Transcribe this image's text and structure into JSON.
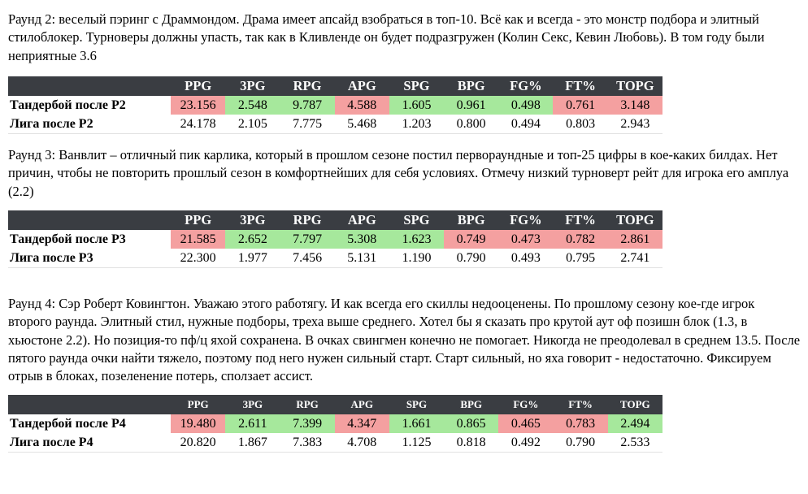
{
  "columns": [
    "PPG",
    "3PG",
    "RPG",
    "APG",
    "SPG",
    "BPG",
    "FG%",
    "FT%",
    "TOPG"
  ],
  "colors": {
    "header_bg": "#3a3d42",
    "bad": "#f4a0a0",
    "good": "#a6e89c"
  },
  "sections": [
    {
      "text": "Раунд 2: веселый пэринг с Драммондом. Драма имеет апсайд взобраться в топ-10. Всё как и всегда - это монстр подбора и элитный стилоблокер. Турноверы должны упасть, так как в Кливленде он будет подразгружен (Колин Секс, Кевин Любовь). В том году были неприятные 3.6",
      "player_row": {
        "label": "Тандербой после Р2",
        "values": [
          "23.156",
          "2.548",
          "9.787",
          "4.588",
          "1.605",
          "0.961",
          "0.498",
          "0.761",
          "3.148"
        ],
        "status": [
          "bad",
          "good",
          "good",
          "bad",
          "good",
          "good",
          "good",
          "bad",
          "bad"
        ]
      },
      "league_row": {
        "label": "Лига после Р2",
        "values": [
          "24.178",
          "2.105",
          "7.775",
          "5.468",
          "1.203",
          "0.800",
          "0.494",
          "0.803",
          "2.943"
        ]
      }
    },
    {
      "text": "Раунд 3: Ванвлит – отличный пик карлика, который в прошлом сезоне постил первораундные и топ-25 цифры в кое-каких билдах. Нет причин, чтобы не повторить прошлый сезон в комфортнейших для себя условиях. Отмечу низкий турноверт рейт для игрока его амплуа (2.2)",
      "player_row": {
        "label": "Тандербой после Р3",
        "values": [
          "21.585",
          "2.652",
          "7.797",
          "5.308",
          "1.623",
          "0.749",
          "0.473",
          "0.782",
          "2.861"
        ],
        "status": [
          "bad",
          "good",
          "good",
          "good",
          "good",
          "bad",
          "bad",
          "bad",
          "bad"
        ]
      },
      "league_row": {
        "label": "Лига после Р3",
        "values": [
          "22.300",
          "1.977",
          "7.456",
          "5.131",
          "1.190",
          "0.790",
          "0.493",
          "0.795",
          "2.741"
        ]
      }
    },
    {
      "text": "Раунд 4: Сэр Роберт Ковингтон. Уважаю этого работягу. И как всегда его скиллы недооценены. По прошлому сезону кое-где игрок второго раунда. Элитный стил, нужные подборы, треха выше среднего. Хотел бы я сказать про крутой аут оф позишн блок (1.3, в хьюстоне 2.2). Но позиция-то пф/ц яхой сохранена. В очках свингмен конечно не помогает. Никогда не преодолевал в среднем 13.5. После пятого раунда очки найти тяжело, поэтому под него нужен сильный старт. Старт сильный, но яха говорит - недостаточно. Фиксируем отрыв в блоках, позеленение потерь, сползает ассист.",
      "player_row": {
        "label": "Тандербой после Р4",
        "values": [
          "19.480",
          "2.611",
          "7.399",
          "4.347",
          "1.661",
          "0.865",
          "0.465",
          "0.783",
          "2.494"
        ],
        "status": [
          "bad",
          "good",
          "good",
          "bad",
          "good",
          "good",
          "bad",
          "bad",
          "good"
        ]
      },
      "league_row": {
        "label": "Лига после Р4",
        "values": [
          "20.820",
          "1.867",
          "7.383",
          "4.708",
          "1.125",
          "0.818",
          "0.492",
          "0.790",
          "2.533"
        ]
      }
    }
  ]
}
